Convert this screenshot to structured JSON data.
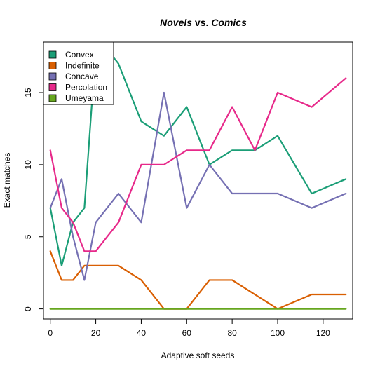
{
  "chart_data": {
    "type": "line",
    "title": {
      "part1": "Novels",
      "part2": " vs. ",
      "part3": "Comics"
    },
    "xlabel": "Adaptive soft seeds",
    "ylabel": "Exact matches",
    "xlim": [
      -3,
      133
    ],
    "ylim": [
      -0.7,
      18.5
    ],
    "xticks": [
      0,
      20,
      40,
      60,
      80,
      100,
      120
    ],
    "yticks": [
      0,
      5,
      10,
      15
    ],
    "legend_position": "top-left",
    "grid": false,
    "series": [
      {
        "name": "Convex",
        "color": "#1b9e77",
        "x": [
          0,
          5,
          10,
          15,
          20,
          25,
          30,
          40,
          50,
          60,
          70,
          80,
          90,
          100,
          115,
          130
        ],
        "values": [
          7,
          3,
          6,
          7,
          18,
          18,
          17,
          13,
          12,
          14,
          10,
          11,
          11,
          12,
          8,
          9
        ]
      },
      {
        "name": "Indefinite",
        "color": "#d95f02",
        "x": [
          0,
          5,
          10,
          15,
          20,
          25,
          30,
          40,
          50,
          60,
          70,
          80,
          90,
          100,
          115,
          130
        ],
        "values": [
          4,
          2,
          2,
          3,
          3,
          3,
          3,
          2,
          0,
          0,
          2,
          2,
          1,
          0,
          1,
          1
        ]
      },
      {
        "name": "Concave",
        "color": "#7570b3",
        "x": [
          0,
          5,
          10,
          15,
          20,
          25,
          30,
          40,
          50,
          60,
          70,
          80,
          90,
          100,
          115,
          130
        ],
        "values": [
          7,
          9,
          5,
          2,
          6,
          7,
          8,
          6,
          15,
          7,
          10,
          8,
          8,
          8,
          7,
          8
        ]
      },
      {
        "name": "Percolation",
        "color": "#e7298a",
        "x": [
          0,
          5,
          10,
          15,
          20,
          25,
          30,
          40,
          50,
          60,
          70,
          80,
          90,
          100,
          115,
          130
        ],
        "values": [
          11,
          7,
          6,
          4,
          4,
          5,
          6,
          10,
          10,
          11,
          11,
          14,
          11,
          15,
          14,
          16
        ]
      },
      {
        "name": "Umeyama",
        "color": "#66a61e",
        "x": [
          0,
          5,
          10,
          15,
          20,
          25,
          30,
          40,
          50,
          60,
          70,
          80,
          90,
          100,
          115,
          130
        ],
        "values": [
          0,
          0,
          0,
          0,
          0,
          0,
          0,
          0,
          0,
          0,
          0,
          0,
          0,
          0,
          0,
          0
        ]
      }
    ]
  }
}
